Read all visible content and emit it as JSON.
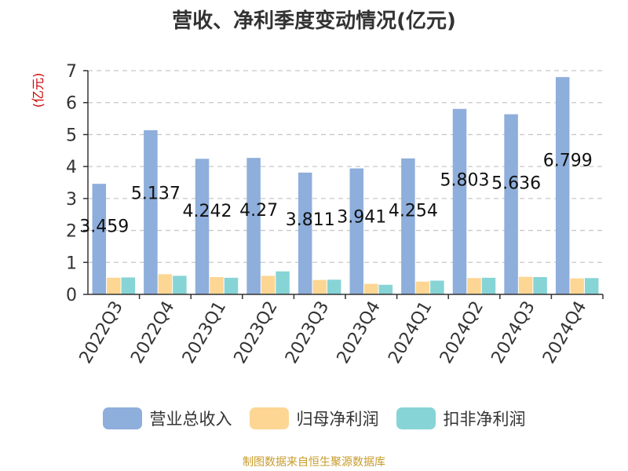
{
  "source_note": "制图数据来自恒生聚源数据库",
  "colors": {
    "revenue": "#8eaedb",
    "net_profit": "#fdd694",
    "deducted_net_profit": "#87d4d6",
    "axis_title": "#cc0000",
    "text": "#333333",
    "grid": "#c8c8c8",
    "source": "#c89b2a"
  },
  "chart_data": {
    "type": "bar",
    "title": "营收、净利季度变动情况(亿元)",
    "ylabel": "(亿元)",
    "xlabel": "",
    "ylim": [
      0,
      7
    ],
    "yticks": [
      0,
      1,
      2,
      3,
      4,
      5,
      6,
      7
    ],
    "grid": true,
    "legend_position": "bottom",
    "categories": [
      "2022Q3",
      "2022Q4",
      "2023Q1",
      "2023Q2",
      "2023Q3",
      "2023Q4",
      "2024Q1",
      "2024Q2",
      "2024Q3",
      "2024Q4"
    ],
    "series": [
      {
        "name": "营业总收入",
        "values": [
          3.459,
          5.137,
          4.242,
          4.27,
          3.811,
          3.941,
          4.254,
          5.803,
          5.636,
          6.799
        ]
      },
      {
        "name": "归母净利润",
        "values": [
          0.52,
          0.63,
          0.54,
          0.58,
          0.45,
          0.33,
          0.4,
          0.51,
          0.55,
          0.5
        ]
      },
      {
        "name": "扣非净利润",
        "values": [
          0.53,
          0.58,
          0.52,
          0.72,
          0.46,
          0.3,
          0.43,
          0.52,
          0.54,
          0.51
        ]
      }
    ],
    "data_labels": [
      "3.459",
      "5.137",
      "4.242",
      "4.27",
      "3.811",
      "3.941",
      "4.254",
      "5.803",
      "5.636",
      "6.799"
    ]
  }
}
